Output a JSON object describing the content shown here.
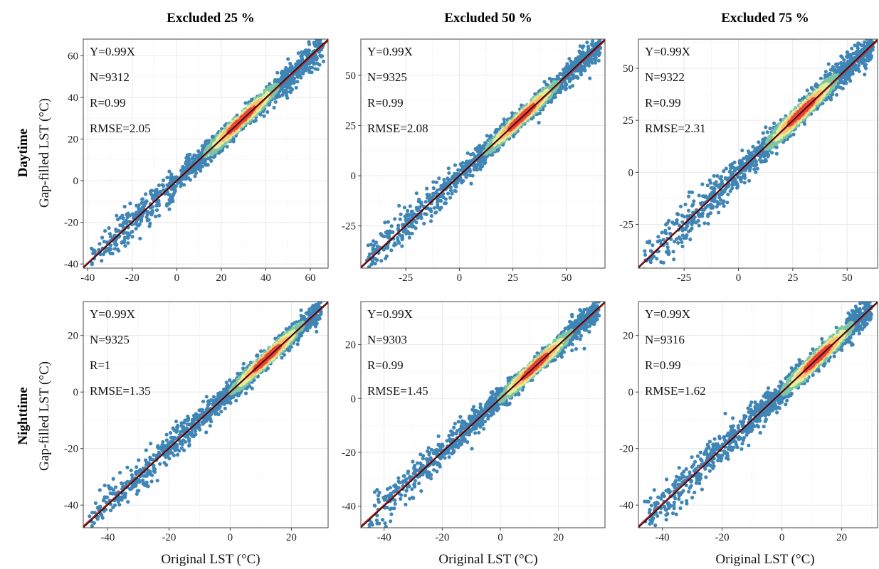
{
  "column_titles": [
    "Excluded 25 %",
    "Excluded 50 %",
    "Excluded 75 %"
  ],
  "row_titles": [
    "Daytime",
    "Nighttime"
  ],
  "axis": {
    "ylabel": "Gap-filled LST (°C)",
    "xlabel": "Original LST (°C)"
  },
  "colors": {
    "low_density": "#3f85b5",
    "mid_low_density": "#7ec6a4",
    "mid_density": "#e2ef9a",
    "mid_high_density": "#fdc06c",
    "high_density": "#e8463a",
    "fit_line": "#b51b1b",
    "one_to_one_line": "#000000"
  },
  "chart_data": [
    {
      "type": "scatter",
      "row": "Daytime",
      "column": "Excluded 25 %",
      "xlim": [
        -42,
        68
      ],
      "ylim": [
        -42,
        68
      ],
      "xticks": [
        -40,
        -20,
        0,
        20,
        40,
        60
      ],
      "yticks": [
        -40,
        -20,
        0,
        20,
        40,
        60
      ],
      "tick_labels_x": [
        "-40",
        "-20",
        "0",
        "20",
        "40",
        "60"
      ],
      "tick_labels_y": [
        "-40",
        "-20",
        "0",
        "20",
        "40",
        "60"
      ],
      "fit": {
        "slope": 0.99,
        "intercept": 0
      },
      "stats": {
        "equation": "Y=0.99X",
        "n": "N=9312",
        "r": "R=0.99",
        "rmse": "RMSE=2.05"
      },
      "density_center": [
        29,
        29
      ],
      "spread_sd": 2.0
    },
    {
      "type": "scatter",
      "row": "Daytime",
      "column": "Excluded 50 %",
      "xlim": [
        -46,
        68
      ],
      "ylim": [
        -46,
        68
      ],
      "xticks": [
        -25,
        0,
        25,
        50
      ],
      "yticks": [
        -25,
        0,
        25,
        50
      ],
      "tick_labels_x": [
        "-25",
        "0",
        "25",
        "50"
      ],
      "tick_labels_y": [
        "-25",
        "0",
        "25",
        "50"
      ],
      "fit": {
        "slope": 0.99,
        "intercept": 0
      },
      "stats": {
        "equation": "Y=0.99X",
        "n": "N=9325",
        "r": "R=0.99",
        "rmse": "RMSE=2.08"
      },
      "density_center": [
        29,
        29
      ],
      "spread_sd": 2.0
    },
    {
      "type": "scatter",
      "row": "Daytime",
      "column": "Excluded 75 %",
      "xlim": [
        -46,
        64
      ],
      "ylim": [
        -46,
        64
      ],
      "xticks": [
        -25,
        0,
        25,
        50
      ],
      "yticks": [
        -25,
        0,
        25,
        50
      ],
      "tick_labels_x": [
        "-25",
        "0",
        "25",
        "50"
      ],
      "tick_labels_y": [
        "-25",
        "0",
        "25",
        "50"
      ],
      "fit": {
        "slope": 0.99,
        "intercept": 0
      },
      "stats": {
        "equation": "Y=0.99X",
        "n": "N=9322",
        "r": "R=0.99",
        "rmse": "RMSE=2.31"
      },
      "density_center": [
        29,
        29
      ],
      "spread_sd": 2.3
    },
    {
      "type": "scatter",
      "row": "Nighttime",
      "column": "Excluded 25 %",
      "xlim": [
        -48,
        32
      ],
      "ylim": [
        -48,
        32
      ],
      "xticks": [
        -40,
        -20,
        0,
        20
      ],
      "yticks": [
        -40,
        -20,
        0,
        20
      ],
      "tick_labels_x": [
        "-40",
        "-20",
        "0",
        "20"
      ],
      "tick_labels_y": [
        "-40",
        "-20",
        "0",
        "20"
      ],
      "fit": {
        "slope": 0.99,
        "intercept": 0
      },
      "stats": {
        "equation": "Y=0.99X",
        "n": "N=9325",
        "r": "R=1",
        "rmse": "RMSE=1.35"
      },
      "density_center": [
        12,
        12
      ],
      "spread_sd": 1.4
    },
    {
      "type": "scatter",
      "row": "Nighttime",
      "column": "Excluded 50 %",
      "xlim": [
        -48,
        36
      ],
      "ylim": [
        -48,
        36
      ],
      "xticks": [
        -40,
        -20,
        0,
        20
      ],
      "yticks": [
        -40,
        -20,
        0,
        20
      ],
      "tick_labels_x": [
        "-40",
        "-20",
        "0",
        "20"
      ],
      "tick_labels_y": [
        "-40",
        "-20",
        "0",
        "20"
      ],
      "fit": {
        "slope": 0.99,
        "intercept": 0
      },
      "stats": {
        "equation": "Y=0.99X",
        "n": "N=9303",
        "r": "R=0.99",
        "rmse": "RMSE=1.45"
      },
      "density_center": [
        12,
        12
      ],
      "spread_sd": 1.5
    },
    {
      "type": "scatter",
      "row": "Nighttime",
      "column": "Excluded 75 %",
      "xlim": [
        -48,
        32
      ],
      "ylim": [
        -48,
        32
      ],
      "xticks": [
        -40,
        -20,
        0,
        20
      ],
      "yticks": [
        -40,
        -20,
        0,
        20
      ],
      "tick_labels_x": [
        "-40",
        "-20",
        "0",
        "20"
      ],
      "tick_labels_y": [
        "-40",
        "-20",
        "0",
        "20"
      ],
      "fit": {
        "slope": 0.99,
        "intercept": 0
      },
      "stats": {
        "equation": "Y=0.99X",
        "n": "N=9316",
        "r": "R=0.99",
        "rmse": "RMSE=1.62"
      },
      "density_center": [
        12,
        12
      ],
      "spread_sd": 1.6
    }
  ]
}
